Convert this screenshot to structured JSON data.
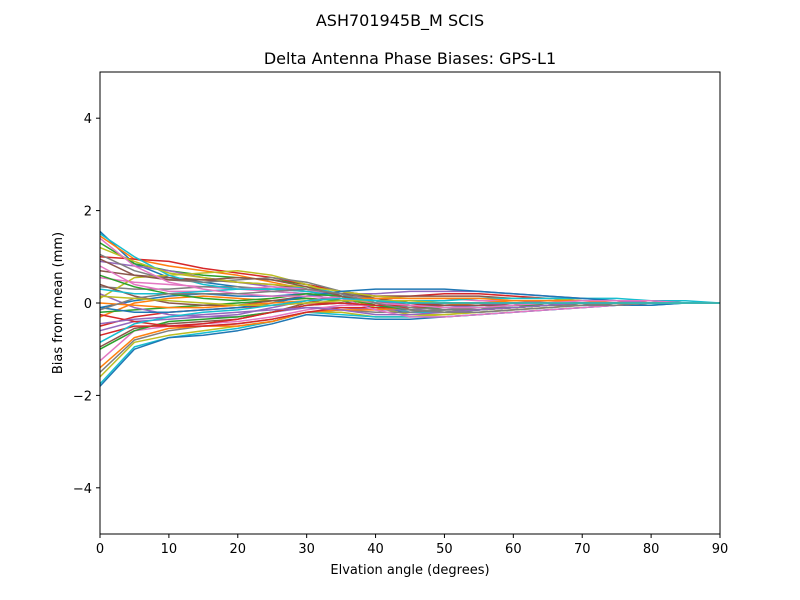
{
  "figure": {
    "suptitle": "ASH701945B_M    SCIS"
  },
  "chart_data": {
    "type": "line",
    "title": "Delta Antenna Phase Biases: GPS-L1",
    "xlabel": "Elvation angle (degrees)",
    "ylabel": "Bias from mean (mm)",
    "xlim": [
      0,
      90
    ],
    "ylim": [
      -5,
      5
    ],
    "xticks": [
      0,
      10,
      20,
      30,
      40,
      50,
      60,
      70,
      80,
      90
    ],
    "yticks": [
      -4,
      -2,
      0,
      2,
      4
    ],
    "xtick_labels": [
      "0",
      "10",
      "20",
      "30",
      "40",
      "50",
      "60",
      "70",
      "80",
      "90"
    ],
    "ytick_labels": [
      "−4",
      "−2",
      "0",
      "2",
      "4"
    ],
    "grid": false,
    "legend": false,
    "colors": [
      "#1f77b4",
      "#ff7f0e",
      "#2ca02c",
      "#d62728",
      "#9467bd",
      "#8c564b",
      "#e377c2",
      "#7f7f7f",
      "#bcbd22",
      "#17becf"
    ],
    "x": [
      0,
      5,
      10,
      15,
      20,
      25,
      30,
      35,
      40,
      45,
      50,
      55,
      60,
      65,
      70,
      75,
      80,
      85,
      90
    ],
    "series": [
      {
        "values": [
          1.55,
          0.85,
          0.55,
          0.45,
          0.35,
          0.25,
          0.2,
          0.05,
          -0.1,
          -0.2,
          -0.15,
          -0.1,
          -0.05,
          0.0,
          0.0,
          0.0,
          0.0,
          0.0,
          0.0
        ]
      },
      {
        "values": [
          1.45,
          0.95,
          0.8,
          0.7,
          0.6,
          0.45,
          0.3,
          0.1,
          -0.05,
          -0.15,
          -0.2,
          -0.15,
          -0.1,
          -0.05,
          -0.05,
          -0.05,
          0.0,
          0.0,
          0.0
        ]
      },
      {
        "values": [
          1.3,
          0.85,
          0.7,
          0.6,
          0.55,
          0.5,
          0.4,
          0.25,
          0.1,
          0.0,
          -0.05,
          -0.05,
          -0.05,
          -0.05,
          0.0,
          0.0,
          0.0,
          0.0,
          0.0
        ]
      },
      {
        "values": [
          1.0,
          0.95,
          0.9,
          0.75,
          0.65,
          0.55,
          0.4,
          0.25,
          0.15,
          0.15,
          0.2,
          0.2,
          0.15,
          0.1,
          0.05,
          0.05,
          0.0,
          0.0,
          0.0
        ]
      },
      {
        "values": [
          0.9,
          0.8,
          0.7,
          0.55,
          0.45,
          0.35,
          0.25,
          0.2,
          0.2,
          0.25,
          0.25,
          0.25,
          0.2,
          0.15,
          0.1,
          0.05,
          0.05,
          0.0,
          0.0
        ]
      },
      {
        "values": [
          0.7,
          0.6,
          0.55,
          0.5,
          0.45,
          0.4,
          0.3,
          0.2,
          0.15,
          0.15,
          0.15,
          0.15,
          0.1,
          0.1,
          0.05,
          0.05,
          0.0,
          0.0,
          0.0
        ]
      },
      {
        "values": [
          0.55,
          0.45,
          0.4,
          0.35,
          0.3,
          0.25,
          0.2,
          0.15,
          0.1,
          0.1,
          0.1,
          0.05,
          0.05,
          0.05,
          0.0,
          0.0,
          0.0,
          0.0,
          0.0
        ]
      },
      {
        "values": [
          0.35,
          0.3,
          0.3,
          0.35,
          0.35,
          0.3,
          0.25,
          0.15,
          0.05,
          0.0,
          0.0,
          0.0,
          0.0,
          0.0,
          0.0,
          0.0,
          0.0,
          0.0,
          0.0
        ]
      },
      {
        "values": [
          0.1,
          0.55,
          0.6,
          0.65,
          0.7,
          0.6,
          0.4,
          0.15,
          -0.1,
          -0.25,
          -0.25,
          -0.2,
          -0.15,
          -0.1,
          -0.05,
          0.0,
          0.0,
          0.0,
          0.0
        ]
      },
      {
        "values": [
          1.5,
          1.0,
          0.6,
          0.4,
          0.3,
          0.3,
          0.35,
          0.2,
          -0.05,
          -0.2,
          -0.2,
          -0.15,
          -0.1,
          -0.05,
          -0.05,
          0.0,
          0.0,
          0.0,
          0.0
        ]
      },
      {
        "values": [
          -0.1,
          0.05,
          0.15,
          0.2,
          0.15,
          0.15,
          0.2,
          0.15,
          0.05,
          -0.05,
          -0.1,
          -0.1,
          -0.1,
          -0.05,
          -0.05,
          0.0,
          0.0,
          0.0,
          0.0
        ]
      },
      {
        "values": [
          -0.3,
          0.0,
          0.1,
          0.15,
          0.1,
          0.05,
          0.1,
          0.05,
          0.0,
          -0.05,
          -0.05,
          -0.05,
          -0.05,
          0.0,
          0.0,
          0.0,
          0.0,
          0.0,
          0.0
        ]
      },
      {
        "values": [
          -0.2,
          -0.15,
          -0.1,
          -0.05,
          0.0,
          0.05,
          0.1,
          0.05,
          0.0,
          0.0,
          0.0,
          0.0,
          0.0,
          0.0,
          0.0,
          0.0,
          0.0,
          0.0,
          0.0
        ]
      },
      {
        "values": [
          -0.5,
          -0.3,
          -0.2,
          -0.15,
          -0.1,
          -0.05,
          0.0,
          0.0,
          -0.05,
          -0.05,
          -0.05,
          -0.05,
          0.0,
          0.0,
          0.0,
          0.0,
          0.0,
          0.0,
          0.0
        ]
      },
      {
        "values": [
          -0.6,
          -0.4,
          -0.35,
          -0.3,
          -0.3,
          -0.2,
          -0.1,
          -0.1,
          -0.15,
          -0.15,
          -0.1,
          -0.05,
          -0.05,
          0.0,
          0.0,
          0.0,
          0.0,
          0.0,
          0.0
        ]
      },
      {
        "values": [
          -0.95,
          -0.55,
          -0.45,
          -0.4,
          -0.35,
          -0.2,
          0.0,
          0.15,
          0.05,
          -0.1,
          -0.15,
          -0.15,
          -0.1,
          -0.05,
          -0.05,
          0.0,
          0.0,
          0.0,
          0.0
        ]
      },
      {
        "values": [
          -1.25,
          -0.6,
          -0.5,
          -0.45,
          -0.4,
          -0.3,
          -0.15,
          -0.05,
          -0.05,
          -0.05,
          -0.05,
          0.0,
          0.0,
          0.0,
          0.0,
          0.0,
          0.0,
          0.0,
          0.0
        ]
      },
      {
        "values": [
          -1.5,
          -0.8,
          -0.6,
          -0.5,
          -0.45,
          -0.35,
          -0.2,
          -0.15,
          -0.2,
          -0.2,
          -0.15,
          -0.1,
          -0.1,
          -0.05,
          -0.05,
          0.0,
          0.0,
          0.0,
          0.0
        ]
      },
      {
        "values": [
          -1.6,
          -0.85,
          -0.7,
          -0.6,
          -0.5,
          -0.4,
          -0.2,
          -0.2,
          -0.3,
          -0.3,
          -0.25,
          -0.2,
          -0.15,
          -0.1,
          -0.05,
          -0.05,
          0.0,
          0.0,
          0.0
        ]
      },
      {
        "values": [
          -1.75,
          -0.95,
          -0.75,
          -0.65,
          -0.55,
          -0.4,
          -0.2,
          -0.25,
          -0.3,
          -0.3,
          -0.3,
          -0.25,
          -0.2,
          -0.15,
          -0.1,
          -0.05,
          -0.05,
          0.0,
          0.0
        ]
      },
      {
        "values": [
          -1.8,
          -1.0,
          -0.75,
          -0.7,
          -0.6,
          -0.45,
          -0.25,
          -0.3,
          -0.35,
          -0.35,
          -0.3,
          -0.25,
          -0.2,
          -0.15,
          -0.1,
          -0.05,
          -0.05,
          0.0,
          0.0
        ]
      },
      {
        "values": [
          -1.4,
          -0.75,
          -0.55,
          -0.5,
          -0.5,
          -0.4,
          -0.2,
          -0.15,
          -0.15,
          -0.1,
          -0.05,
          0.0,
          0.05,
          0.05,
          0.05,
          0.05,
          0.0,
          0.0,
          0.0
        ]
      },
      {
        "values": [
          -1.0,
          -0.6,
          -0.4,
          -0.35,
          -0.3,
          -0.2,
          -0.05,
          0.0,
          -0.05,
          -0.1,
          -0.1,
          -0.1,
          -0.05,
          -0.05,
          0.0,
          0.0,
          0.0,
          0.0,
          0.0
        ]
      },
      {
        "values": [
          -0.25,
          -0.4,
          -0.5,
          -0.5,
          -0.45,
          -0.35,
          -0.2,
          -0.1,
          -0.1,
          -0.1,
          -0.05,
          -0.05,
          0.0,
          0.0,
          0.0,
          0.0,
          0.0,
          0.0,
          0.0
        ]
      },
      {
        "values": [
          0.2,
          -0.1,
          -0.25,
          -0.3,
          -0.25,
          -0.1,
          0.05,
          0.15,
          0.05,
          -0.05,
          -0.1,
          -0.05,
          0.0,
          0.05,
          0.05,
          0.05,
          0.0,
          0.0,
          0.0
        ]
      },
      {
        "values": [
          0.4,
          0.15,
          0.0,
          -0.05,
          -0.05,
          0.05,
          0.15,
          0.2,
          0.1,
          0.0,
          -0.05,
          -0.05,
          -0.05,
          0.0,
          0.0,
          0.0,
          0.0,
          0.0,
          0.0
        ]
      },
      {
        "values": [
          0.8,
          0.4,
          0.25,
          0.25,
          0.3,
          0.35,
          0.3,
          0.1,
          -0.15,
          -0.3,
          -0.3,
          -0.25,
          -0.2,
          -0.15,
          -0.1,
          -0.05,
          0.0,
          0.0,
          0.0
        ]
      },
      {
        "values": [
          1.05,
          0.7,
          0.5,
          0.45,
          0.5,
          0.55,
          0.45,
          0.25,
          0.05,
          -0.1,
          -0.15,
          -0.15,
          -0.1,
          -0.05,
          0.0,
          0.0,
          0.0,
          0.0,
          0.0
        ]
      },
      {
        "values": [
          1.2,
          0.9,
          0.65,
          0.55,
          0.45,
          0.4,
          0.35,
          0.25,
          0.15,
          0.1,
          0.1,
          0.1,
          0.1,
          0.1,
          0.05,
          0.05,
          0.05,
          0.0,
          0.0
        ]
      },
      {
        "values": [
          0.3,
          0.2,
          0.2,
          0.25,
          0.3,
          0.3,
          0.25,
          0.15,
          0.05,
          0.05,
          0.05,
          0.1,
          0.1,
          0.1,
          0.1,
          0.1,
          0.05,
          0.05,
          0.0
        ]
      },
      {
        "values": [
          -0.1,
          -0.2,
          -0.2,
          -0.15,
          -0.1,
          0.0,
          0.15,
          0.25,
          0.3,
          0.3,
          0.3,
          0.25,
          0.2,
          0.15,
          0.1,
          0.05,
          0.05,
          0.0,
          0.0
        ]
      },
      {
        "values": [
          0.0,
          -0.05,
          -0.1,
          -0.1,
          -0.05,
          0.0,
          0.05,
          0.1,
          0.1,
          0.1,
          0.1,
          0.1,
          0.05,
          0.05,
          0.05,
          0.0,
          0.0,
          0.0,
          0.0
        ]
      },
      {
        "values": [
          0.6,
          0.35,
          0.2,
          0.1,
          0.05,
          0.1,
          0.2,
          0.15,
          -0.05,
          -0.15,
          -0.2,
          -0.15,
          -0.1,
          -0.05,
          0.0,
          0.0,
          0.0,
          0.0,
          0.0
        ]
      },
      {
        "values": [
          -0.7,
          -0.5,
          -0.5,
          -0.45,
          -0.35,
          -0.2,
          -0.05,
          0.0,
          -0.05,
          -0.05,
          0.0,
          0.0,
          0.0,
          0.0,
          0.0,
          0.0,
          0.0,
          0.0,
          0.0
        ]
      },
      {
        "values": [
          -0.45,
          -0.35,
          -0.3,
          -0.25,
          -0.2,
          -0.15,
          -0.1,
          -0.15,
          -0.25,
          -0.25,
          -0.2,
          -0.15,
          -0.1,
          -0.05,
          0.0,
          0.0,
          0.0,
          0.0,
          0.0
        ]
      },
      {
        "values": [
          0.95,
          0.6,
          0.5,
          0.5,
          0.55,
          0.5,
          0.35,
          0.15,
          0.0,
          -0.05,
          -0.05,
          -0.05,
          -0.05,
          0.0,
          0.0,
          0.0,
          0.0,
          0.0,
          0.0
        ]
      },
      {
        "values": [
          1.4,
          0.8,
          0.45,
          0.3,
          0.2,
          0.15,
          0.15,
          0.1,
          0.0,
          -0.05,
          -0.1,
          -0.1,
          -0.05,
          0.0,
          0.05,
          0.05,
          0.05,
          0.0,
          0.0
        ]
      },
      {
        "values": [
          -0.15,
          0.1,
          0.2,
          0.2,
          0.2,
          0.25,
          0.3,
          0.2,
          0.0,
          -0.15,
          -0.2,
          -0.2,
          -0.15,
          -0.1,
          -0.05,
          -0.05,
          0.0,
          0.0,
          0.0
        ]
      },
      {
        "values": [
          0.15,
          0.1,
          0.05,
          0.0,
          -0.05,
          -0.05,
          0.0,
          0.05,
          0.05,
          0.05,
          0.0,
          0.0,
          0.0,
          0.0,
          0.0,
          0.0,
          0.0,
          0.0,
          0.0
        ]
      },
      {
        "values": [
          -0.85,
          -0.45,
          -0.3,
          -0.2,
          -0.15,
          -0.05,
          0.05,
          0.1,
          0.05,
          0.0,
          0.0,
          0.0,
          0.0,
          0.0,
          0.0,
          0.0,
          0.0,
          0.0,
          0.0
        ]
      }
    ]
  }
}
